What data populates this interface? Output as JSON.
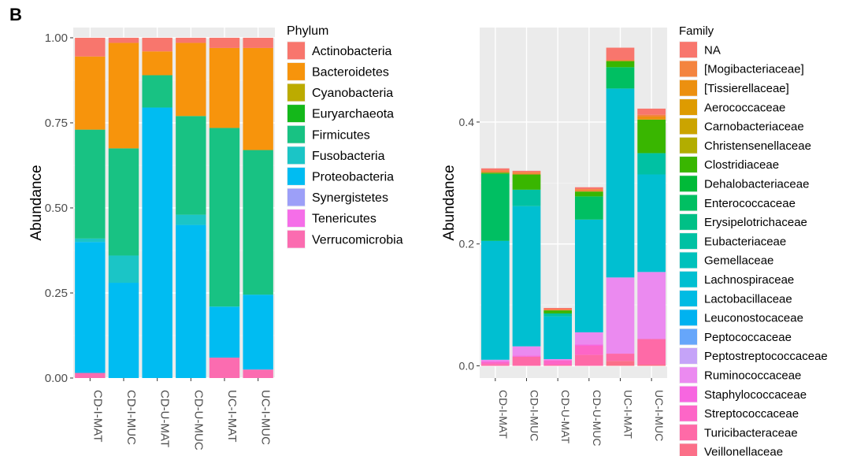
{
  "panel_label": "B",
  "chart_data": [
    {
      "type": "bar",
      "stacked": true,
      "ylabel": "Abundance",
      "xlabel": "",
      "ylim": [
        0,
        1.03
      ],
      "yticks": [
        "0.00",
        "0.25",
        "0.50",
        "0.75",
        "1.00"
      ],
      "yticks_values": [
        0,
        0.25,
        0.5,
        0.75,
        1.0
      ],
      "grid": true,
      "legend_title": "Phylum",
      "legend_position": "right",
      "categories": [
        "CD-I-MAT",
        "CD-I-MUC",
        "CD-U-MAT",
        "CD-U-MUC",
        "UC-I-MAT",
        "UC-I-MUC"
      ],
      "series": [
        {
          "name": "Actinobacteria",
          "color": "#F8766D",
          "values": [
            0.055,
            0.015,
            0.04,
            0.015,
            0.03,
            0.03
          ]
        },
        {
          "name": "Bacteroidetes",
          "color": "#F7940C",
          "values": [
            0.215,
            0.31,
            0.07,
            0.215,
            0.235,
            0.3
          ]
        },
        {
          "name": "Cyanobacteria",
          "color": "#BCAB00",
          "values": [
            0,
            0,
            0,
            0,
            0,
            0
          ]
        },
        {
          "name": "Euryarchaeota",
          "color": "#14B81A",
          "values": [
            0,
            0,
            0,
            0,
            0,
            0
          ]
        },
        {
          "name": "Firmicutes",
          "color": "#18C283",
          "values": [
            0.32,
            0.315,
            0.095,
            0.29,
            0.525,
            0.425
          ]
        },
        {
          "name": "Fusobacteria",
          "color": "#1BC5C6",
          "values": [
            0.01,
            0.08,
            0,
            0.03,
            0,
            0
          ]
        },
        {
          "name": "Proteobacteria",
          "color": "#00BCF2",
          "values": [
            0.385,
            0.28,
            0.795,
            0.45,
            0.15,
            0.22
          ]
        },
        {
          "name": "Synergistetes",
          "color": "#9C9FF8",
          "values": [
            0,
            0,
            0,
            0,
            0,
            0
          ]
        },
        {
          "name": "Tenericutes",
          "color": "#F56EE8",
          "values": [
            0,
            0,
            0,
            0,
            0,
            0
          ]
        },
        {
          "name": "Verrucomicrobia",
          "color": "#FB6CB0",
          "values": [
            0.015,
            0,
            0,
            0,
            0.06,
            0.025
          ]
        }
      ]
    },
    {
      "type": "bar",
      "stacked": true,
      "ylabel": "Abundance",
      "xlabel": "",
      "ylim": [
        -0.02,
        0.555
      ],
      "yticks": [
        "0.0",
        "0.2",
        "0.4"
      ],
      "yticks_values": [
        0,
        0.2,
        0.4
      ],
      "grid": true,
      "legend_title": "Family",
      "legend_position": "right",
      "categories": [
        "CD-I-MAT",
        "CD-I-MUC",
        "CD-U-MAT",
        "CD-U-MUC",
        "UC-I-MAT",
        "UC-I-MUC"
      ],
      "series": [
        {
          "name": "NA",
          "color": "#F8766D",
          "values": [
            0.003,
            0.002,
            0.002,
            0.003,
            0.02,
            0.01
          ]
        },
        {
          "name": "[Mogibacteriaceae]",
          "color": "#F4843F",
          "values": [
            0.004,
            0.004,
            0.002,
            0.004,
            0.002,
            0.003
          ]
        },
        {
          "name": "[Tissierellaceae]",
          "color": "#EC9010",
          "values": [
            0,
            0,
            0,
            0,
            0,
            0.005
          ]
        },
        {
          "name": "Aerococcaceae",
          "color": "#DE9B00",
          "values": [
            0,
            0,
            0,
            0,
            0,
            0
          ]
        },
        {
          "name": "Carnobacteriaceae",
          "color": "#CBA400",
          "values": [
            0,
            0,
            0,
            0,
            0,
            0
          ]
        },
        {
          "name": "Christensenellaceae",
          "color": "#B2AD00",
          "values": [
            0,
            0,
            0,
            0,
            0,
            0
          ]
        },
        {
          "name": "Clostridiaceae",
          "color": "#39B600",
          "values": [
            0.002,
            0.025,
            0.005,
            0.008,
            0.01,
            0.055
          ]
        },
        {
          "name": "Dehalobacteriaceae",
          "color": "#00BA38",
          "values": [
            0,
            0,
            0,
            0,
            0,
            0
          ]
        },
        {
          "name": "Enterococcaceae",
          "color": "#00BF62",
          "values": [
            0.11,
            0,
            0,
            0.038,
            0.035,
            0
          ]
        },
        {
          "name": "Erysipelotrichaceae",
          "color": "#00C086",
          "values": [
            0,
            0,
            0,
            0,
            0,
            0
          ]
        },
        {
          "name": "Eubacteriaceae",
          "color": "#00C1A3",
          "values": [
            0,
            0.027,
            0.005,
            0,
            0,
            0.035
          ]
        },
        {
          "name": "Gemellaceae",
          "color": "#00C1BC",
          "values": [
            0,
            0,
            0,
            0,
            0,
            0
          ]
        },
        {
          "name": "Lachnospiraceae",
          "color": "#00BFD1",
          "values": [
            0.195,
            0.23,
            0.07,
            0.185,
            0.31,
            0.16
          ]
        },
        {
          "name": "Lactobacillaceae",
          "color": "#00BBE3",
          "values": [
            0,
            0,
            0,
            0,
            0,
            0
          ]
        },
        {
          "name": "Leuconostocaceae",
          "color": "#00B2F0",
          "values": [
            0,
            0,
            0,
            0,
            0,
            0
          ]
        },
        {
          "name": "Peptococcaceae",
          "color": "#66A6FA",
          "values": [
            0,
            0,
            0,
            0,
            0,
            0
          ]
        },
        {
          "name": "Peptostreptococcaceae",
          "color": "#C5A3F8",
          "values": [
            0,
            0,
            0,
            0,
            0,
            0
          ]
        },
        {
          "name": "Ruminococcaceae",
          "color": "#EB8AF0",
          "values": [
            0.002,
            0.015,
            0.002,
            0.02,
            0.125,
            0.11
          ]
        },
        {
          "name": "Staphylococcaceae",
          "color": "#F766E0",
          "values": [
            0.002,
            0.002,
            0,
            0.002,
            0,
            0
          ]
        },
        {
          "name": "Streptococcaceae",
          "color": "#FD66C7",
          "values": [
            0.003,
            0,
            0.007,
            0.015,
            0,
            0
          ]
        },
        {
          "name": "Turicibacteraceae",
          "color": "#FE6AA7",
          "values": [
            0.003,
            0.015,
            0.002,
            0.018,
            0.012,
            0.042
          ]
        },
        {
          "name": "Veillonellaceae",
          "color": "#FB6F88",
          "values": [
            0.0,
            0.0,
            0.0,
            0.0,
            0.008,
            0.002
          ]
        }
      ]
    }
  ]
}
